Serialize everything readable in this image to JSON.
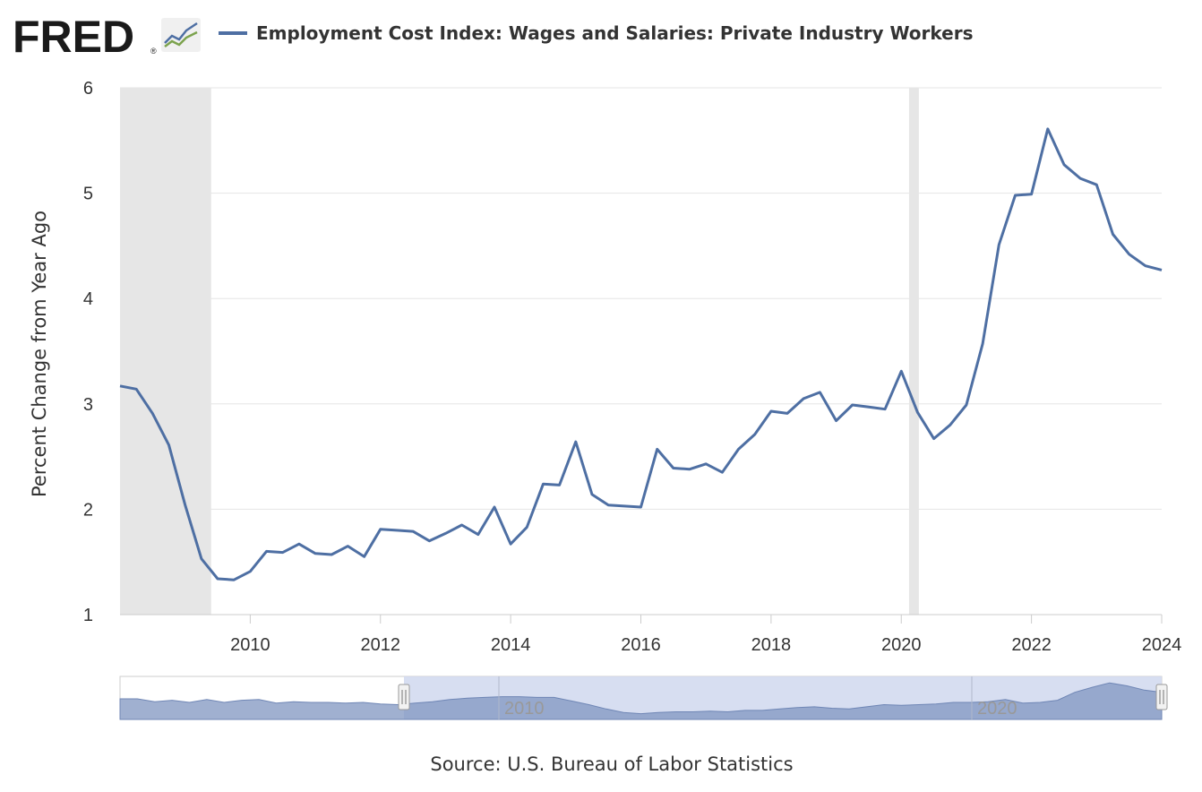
{
  "logo": {
    "text": "FRED",
    "registered": "®",
    "icon": "chart-growth-icon"
  },
  "colors": {
    "line": "#4e6fa3",
    "recession": "#e6e6e6",
    "grid": "#e6e6e6",
    "navigator_fill": "#a8b6d2",
    "navigator_selected": "#d0d8ee"
  },
  "chart_data": {
    "type": "line",
    "title": "Employment Cost Index: Wages and Salaries: Private Industry Workers",
    "ylabel": "Percent Change from Year Ago",
    "xlabel": "",
    "ylim": [
      1,
      6
    ],
    "xlim": [
      2008.0,
      2024.0
    ],
    "y_ticks": [
      "1",
      "2",
      "3",
      "4",
      "5",
      "6"
    ],
    "x_ticks": [
      "2010",
      "2012",
      "2014",
      "2016",
      "2018",
      "2020",
      "2022",
      "2024"
    ],
    "grid": true,
    "legend_position": "top",
    "recessions": [
      [
        2008.0,
        2009.4
      ],
      [
        2020.12,
        2020.27
      ]
    ],
    "series": [
      {
        "name": "Employment Cost Index: Wages and Salaries: Private Industry Workers",
        "x": [
          2008.0,
          2008.25,
          2008.5,
          2008.75,
          2009.0,
          2009.25,
          2009.5,
          2009.75,
          2010.0,
          2010.25,
          2010.5,
          2010.75,
          2011.0,
          2011.25,
          2011.5,
          2011.75,
          2012.0,
          2012.25,
          2012.5,
          2012.75,
          2013.0,
          2013.25,
          2013.5,
          2013.75,
          2014.0,
          2014.25,
          2014.5,
          2014.75,
          2015.0,
          2015.25,
          2015.5,
          2015.75,
          2016.0,
          2016.25,
          2016.5,
          2016.75,
          2017.0,
          2017.25,
          2017.5,
          2017.75,
          2018.0,
          2018.25,
          2018.5,
          2018.75,
          2019.0,
          2019.25,
          2019.5,
          2019.75,
          2020.0,
          2020.25,
          2020.5,
          2020.75,
          2021.0,
          2021.25,
          2021.5,
          2021.75,
          2022.0,
          2022.25,
          2022.5,
          2022.75,
          2023.0,
          2023.25,
          2023.5,
          2023.75,
          2024.0
        ],
        "values": [
          3.17,
          3.14,
          2.91,
          2.61,
          2.04,
          1.53,
          1.34,
          1.33,
          1.41,
          1.6,
          1.59,
          1.67,
          1.58,
          1.57,
          1.65,
          1.55,
          1.81,
          1.8,
          1.79,
          1.7,
          1.77,
          1.85,
          1.76,
          2.02,
          1.67,
          1.83,
          2.24,
          2.23,
          2.64,
          2.14,
          2.04,
          2.03,
          2.02,
          2.57,
          2.39,
          2.38,
          2.43,
          2.35,
          2.57,
          2.71,
          2.93,
          2.91,
          3.05,
          3.11,
          2.84,
          2.99,
          2.97,
          2.95,
          3.31,
          2.92,
          2.67,
          2.8,
          2.99,
          3.57,
          4.51,
          4.98,
          4.99,
          5.61,
          5.27,
          5.14,
          5.08,
          4.61,
          4.42,
          4.31,
          4.27
        ]
      }
    ],
    "navigator": {
      "x_ticks": [
        "2010",
        "2020"
      ],
      "xlim": [
        1980.0,
        2024.0
      ],
      "selected_range": [
        2008.0,
        2024.0
      ]
    }
  },
  "source": "Source: U.S. Bureau of Labor Statistics"
}
